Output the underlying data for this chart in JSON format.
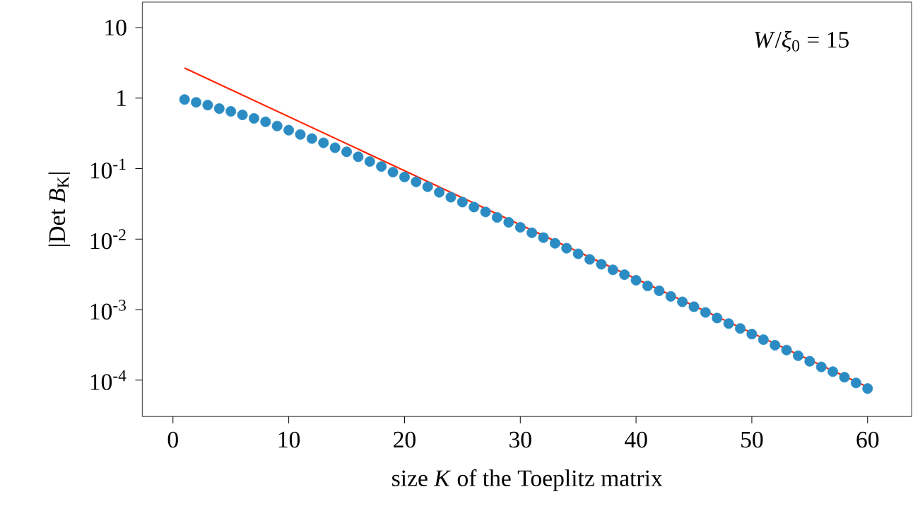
{
  "chart_data": {
    "type": "scatter",
    "xlabel": "size *K* of the Toeplitz matrix",
    "ylabel": "|Det *B*$_{K}$|",
    "annotations": [
      "*W*/*ξ*$_{0}$ = 15"
    ],
    "log": "y",
    "marker": "circle",
    "grid": false,
    "xlim": [
      -2.65,
      63.8
    ],
    "ylim": [
      3.05e-05,
      23
    ],
    "xticks": [
      0,
      10,
      20,
      30,
      40,
      50,
      60
    ],
    "yticks": [
      {
        "value": 10,
        "label": "10"
      },
      {
        "value": 1,
        "label": "1"
      },
      {
        "value": 0.1,
        "label": "10$^{-1}$"
      },
      {
        "value": 0.01,
        "label": "10$^{-2}$"
      },
      {
        "value": 0.001,
        "label": "10$^{-3}$"
      },
      {
        "value": 0.0001,
        "label": "10$^{-4}$"
      }
    ],
    "series": [
      {
        "color": "#2b8cc4",
        "x": [
          1,
          2,
          3,
          4,
          5,
          6,
          7,
          8,
          9,
          10,
          11,
          12,
          13,
          14,
          15,
          16,
          17,
          18,
          19,
          20,
          21,
          22,
          23,
          24,
          25,
          26,
          27,
          28,
          29,
          30,
          31,
          32,
          33,
          34,
          35,
          36,
          37,
          38,
          39,
          40,
          41,
          42,
          43,
          44,
          45,
          46,
          47,
          48,
          49,
          50,
          51,
          52,
          53,
          54,
          55,
          56,
          57,
          58,
          59,
          60
        ],
        "values": [
          0.955,
          0.872,
          0.796,
          0.71,
          0.648,
          0.578,
          0.516,
          0.461,
          0.402,
          0.351,
          0.305,
          0.267,
          0.232,
          0.198,
          0.173,
          0.147,
          0.126,
          0.107,
          0.0892,
          0.076,
          0.0649,
          0.0553,
          0.0461,
          0.0393,
          0.0335,
          0.0285,
          0.0243,
          0.0203,
          0.0173,
          0.0147,
          0.0123,
          0.0105,
          0.00873,
          0.00743,
          0.00619,
          0.00516,
          0.0044,
          0.00367,
          0.00313,
          0.00261,
          0.00217,
          0.00185,
          0.00154,
          0.00129,
          0.0011,
          0.000912,
          0.00076,
          0.000634,
          0.00054,
          0.00045,
          0.000375,
          0.000313,
          0.000267,
          0.000222,
          0.000185,
          0.000154,
          0.000132,
          0.00011,
          9.12e-05,
          7.6e-05
        ]
      },
      {
        "type": "line",
        "color": "#ff2200",
        "marker": "none",
        "x": [
          1,
          60
        ],
        "values": [
          2.67,
          8e-05
        ]
      }
    ]
  }
}
